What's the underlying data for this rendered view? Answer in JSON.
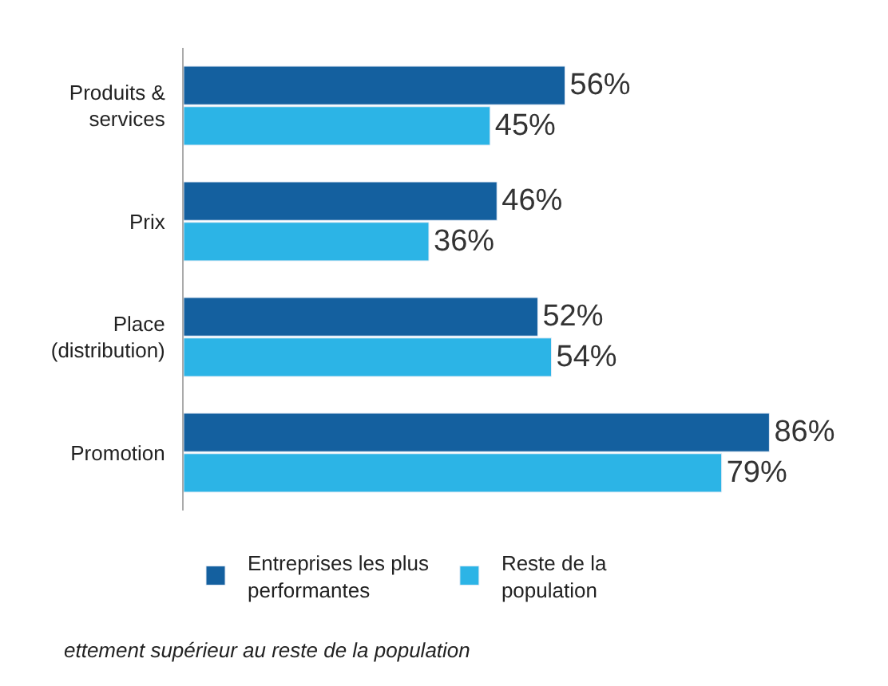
{
  "chart_data": {
    "type": "bar",
    "orientation": "horizontal",
    "categories": [
      "Produits &\nservices",
      "Prix",
      "Place\n(distribution)",
      "Promotion"
    ],
    "series": [
      {
        "name": "Entreprises les plus\nperformantes",
        "color": "#14609f",
        "values": [
          56,
          46,
          52,
          86
        ],
        "value_labels": [
          "56%",
          "46%",
          "52%",
          "86%"
        ]
      },
      {
        "name": "Reste de la\npopulation",
        "color": "#2cb4e6",
        "values": [
          45,
          36,
          54,
          79
        ],
        "value_labels": [
          "45%",
          "36%",
          "54%",
          "79%"
        ]
      }
    ],
    "legend": "bottom",
    "annotations": [
      "ettement supérieur au reste de la population"
    ]
  }
}
